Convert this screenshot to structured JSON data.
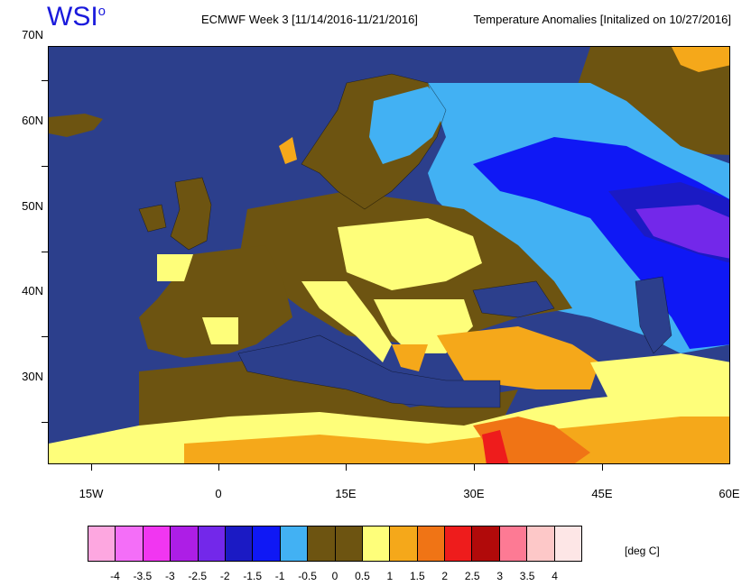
{
  "brand": {
    "name": "WSI",
    "mark": "o"
  },
  "header": {
    "left": "ECMWF Week 3 [11/14/2016-11/21/2016]",
    "right": "Temperature Anomalies [Initalized on 10/27/2016]"
  },
  "axes": {
    "lat_labels": [
      "70N",
      "60N",
      "50N",
      "40N",
      "30N"
    ],
    "lon_labels": [
      "15W",
      "0",
      "15E",
      "30E",
      "45E",
      "60E"
    ]
  },
  "colors": {
    "ocean": "#2c3f8c",
    "neg_0_5": "#6d5411",
    "pos_0_5": "#fefe7a",
    "pos_1": "#f5a81a",
    "pos_1_5": "#f07415",
    "pos_2": "#ee1c1c",
    "neg_1": "#42b1f3",
    "neg_1_5": "#0f18f5",
    "neg_2": "#1b1ac4",
    "neg_2_5": "#7328ea"
  },
  "colorbar": {
    "colors": [
      "#fda7e0",
      "#f46ef8",
      "#f136f1",
      "#ad1ee6",
      "#7328ea",
      "#1b1ac4",
      "#0f18f5",
      "#42b1f3",
      "#6d5411",
      "#6d5411",
      "#fefe7a",
      "#f5a81a",
      "#f07415",
      "#ee1c1c",
      "#b10a0a",
      "#fd7a94",
      "#fdc8c8",
      "#fde6e6"
    ],
    "labels": [
      "-4",
      "-3.5",
      "-3",
      "-2.5",
      "-2",
      "-1.5",
      "-1",
      "-0.5",
      "0",
      "0.5",
      "1",
      "1.5",
      "2",
      "2.5",
      "3",
      "3.5",
      "4"
    ],
    "unit": "[deg C]"
  }
}
